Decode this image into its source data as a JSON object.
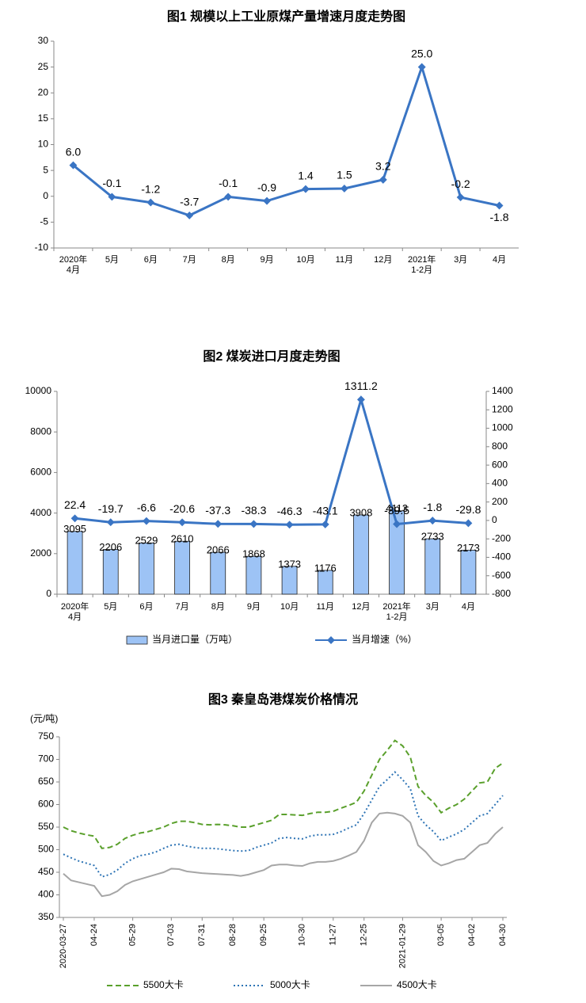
{
  "chart_data": [
    {
      "type": "line",
      "title": "图1  规模以上工业原煤产量增速月度走势图",
      "categories": [
        "2020年\n4月",
        "5月",
        "6月",
        "7月",
        "8月",
        "9月",
        "10月",
        "11月",
        "12月",
        "2021年\n1-2月",
        "3月",
        "4月"
      ],
      "values": [
        6.0,
        -0.1,
        -1.2,
        -3.7,
        -0.1,
        -0.9,
        1.4,
        1.5,
        3.2,
        25.0,
        -0.2,
        -1.8
      ],
      "value_labels": [
        "6.0",
        "-0.1",
        "-1.2",
        "-3.7",
        "-0.1",
        "-0.9",
        "1.4",
        "1.5",
        "3.2",
        "25.0",
        "-0.2",
        "-1.8"
      ],
      "color": "#3a75c4",
      "marker": "diamond",
      "data_labels": true,
      "ylim": [
        -10,
        30
      ],
      "yticks": [
        -10,
        -5,
        0,
        5,
        10,
        15,
        20,
        25,
        30
      ],
      "grid": false
    },
    {
      "type": "bar",
      "title": "图2  煤炭进口月度走势图",
      "categories": [
        "2020年\n4月",
        "5月",
        "6月",
        "7月",
        "8月",
        "9月",
        "10月",
        "11月",
        "12月",
        "2021年\n1-2月",
        "3月",
        "4月"
      ],
      "series": [
        {
          "name": "当月进口量（万吨）",
          "type": "bar",
          "color": "#9dc3f5",
          "values": [
            3095,
            2206,
            2529,
            2610,
            2066,
            1868,
            1373,
            1176,
            3908,
            4113,
            2733,
            2173
          ]
        },
        {
          "name": "当月增速（%）",
          "type": "line",
          "axis": "y2",
          "color": "#3a75c4",
          "marker": "diamond",
          "values": [
            22.4,
            -19.7,
            -6.6,
            -20.6,
            -37.3,
            -38.3,
            -46.3,
            -43.1,
            1311.2,
            -39.5,
            -1.8,
            -29.8
          ]
        }
      ],
      "data_labels": true,
      "ylim": [
        0,
        10000
      ],
      "yticks": [
        0,
        2000,
        4000,
        6000,
        8000,
        10000
      ],
      "y2lim": [
        -800,
        1400
      ],
      "y2ticks": [
        -800,
        -600,
        -400,
        -200,
        0,
        200,
        400,
        600,
        800,
        1000,
        1200,
        1400
      ],
      "grid": false
    },
    {
      "type": "line",
      "title": "图3  秦皇岛港煤炭价格情况",
      "y_label": "(元/吨)",
      "categories": [
        "2020-03-27",
        null,
        null,
        null,
        "04-24",
        null,
        null,
        null,
        null,
        "05-29",
        null,
        null,
        null,
        null,
        "07-03",
        null,
        null,
        null,
        "07-31",
        null,
        null,
        null,
        "08-28",
        null,
        null,
        null,
        "09-25",
        null,
        null,
        null,
        null,
        "10-30",
        null,
        null,
        null,
        "11-27",
        null,
        null,
        null,
        "12-25",
        null,
        null,
        null,
        null,
        "2021-01-29",
        null,
        null,
        null,
        null,
        "03-05",
        null,
        null,
        null,
        "04-02",
        null,
        null,
        null,
        "04-30"
      ],
      "series": [
        {
          "name": "5500大卡",
          "color": "#5aa02c",
          "dash": "dashed",
          "values": [
            550,
            542,
            537,
            533,
            530,
            503,
            505,
            512,
            525,
            532,
            537,
            540,
            545,
            550,
            558,
            563,
            563,
            560,
            556,
            555,
            556,
            555,
            553,
            550,
            550,
            555,
            560,
            565,
            578,
            578,
            577,
            576,
            580,
            583,
            583,
            585,
            592,
            598,
            605,
            630,
            665,
            700,
            720,
            742,
            730,
            705,
            640,
            620,
            605,
            582,
            592,
            600,
            612,
            630,
            648,
            650,
            680,
            692
          ]
        },
        {
          "name": "5000大卡",
          "color": "#2e74b5",
          "dash": "dotted",
          "values": [
            490,
            482,
            475,
            470,
            465,
            440,
            445,
            455,
            470,
            480,
            487,
            490,
            495,
            503,
            510,
            512,
            508,
            505,
            503,
            503,
            502,
            500,
            498,
            497,
            498,
            505,
            510,
            515,
            525,
            527,
            525,
            524,
            530,
            533,
            533,
            534,
            540,
            548,
            555,
            580,
            610,
            640,
            655,
            672,
            655,
            635,
            575,
            555,
            540,
            520,
            528,
            535,
            545,
            560,
            575,
            580,
            600,
            620
          ]
        },
        {
          "name": "4500大卡",
          "color": "#a6a6a6",
          "dash": "solid",
          "values": [
            447,
            432,
            428,
            424,
            420,
            397,
            400,
            408,
            422,
            430,
            435,
            440,
            445,
            450,
            458,
            457,
            452,
            450,
            448,
            447,
            446,
            445,
            444,
            442,
            445,
            450,
            455,
            465,
            467,
            467,
            465,
            464,
            470,
            473,
            473,
            475,
            480,
            487,
            495,
            520,
            560,
            580,
            582,
            580,
            575,
            560,
            510,
            495,
            475,
            465,
            470,
            477,
            480,
            495,
            510,
            515,
            535,
            550
          ]
        }
      ],
      "ylim": [
        350,
        750
      ],
      "yticks": [
        350,
        400,
        450,
        500,
        550,
        600,
        650,
        700,
        750
      ],
      "grid": false
    }
  ]
}
